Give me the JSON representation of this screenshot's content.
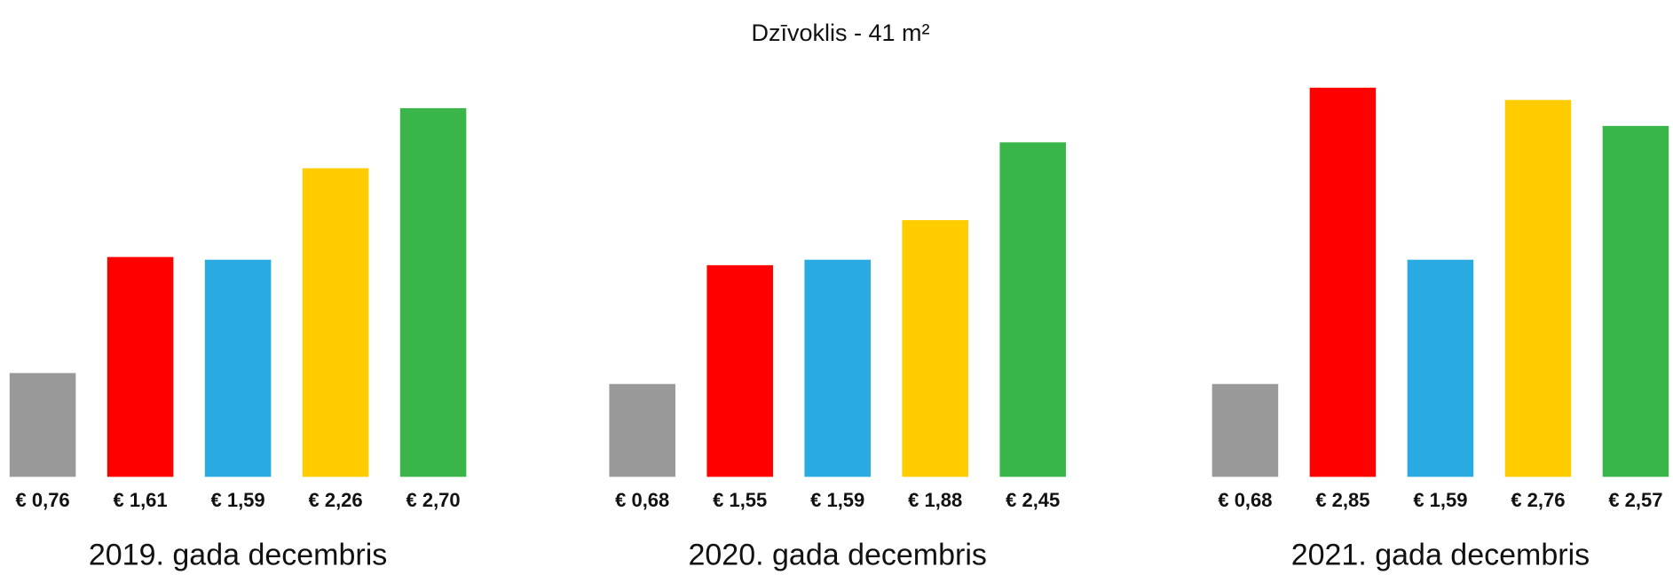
{
  "title": "Dzīvoklis - 41 m²",
  "chart_data": [
    {
      "type": "bar",
      "xlabel": "2019. gada decembris",
      "values": [
        0.76,
        1.61,
        1.59,
        2.26,
        2.7
      ],
      "value_labels": [
        "€ 0,76",
        "€ 1,61",
        "€ 1,59",
        "€ 2,26",
        "€ 2,70"
      ],
      "colors": [
        "#999999",
        "#ff0000",
        "#29abe2",
        "#ffcc00",
        "#39b54a"
      ],
      "ylim": [
        0,
        3
      ]
    },
    {
      "type": "bar",
      "xlabel": "2020. gada decembris",
      "values": [
        0.68,
        1.55,
        1.59,
        1.88,
        2.45
      ],
      "value_labels": [
        "€ 0,68",
        "€ 1,55",
        "€ 1,59",
        "€ 1,88",
        "€ 2,45"
      ],
      "colors": [
        "#999999",
        "#ff0000",
        "#29abe2",
        "#ffcc00",
        "#39b54a"
      ],
      "ylim": [
        0,
        3
      ]
    },
    {
      "type": "bar",
      "xlabel": "2021. gada decembris",
      "values": [
        0.68,
        2.85,
        1.59,
        2.76,
        2.57
      ],
      "value_labels": [
        "€ 0,68",
        "€ 2,85",
        "€ 1,59",
        "€ 2,76",
        "€ 2,57"
      ],
      "colors": [
        "#999999",
        "#ff0000",
        "#29abe2",
        "#ffcc00",
        "#39b54a"
      ],
      "ylim": [
        0,
        3
      ]
    }
  ]
}
